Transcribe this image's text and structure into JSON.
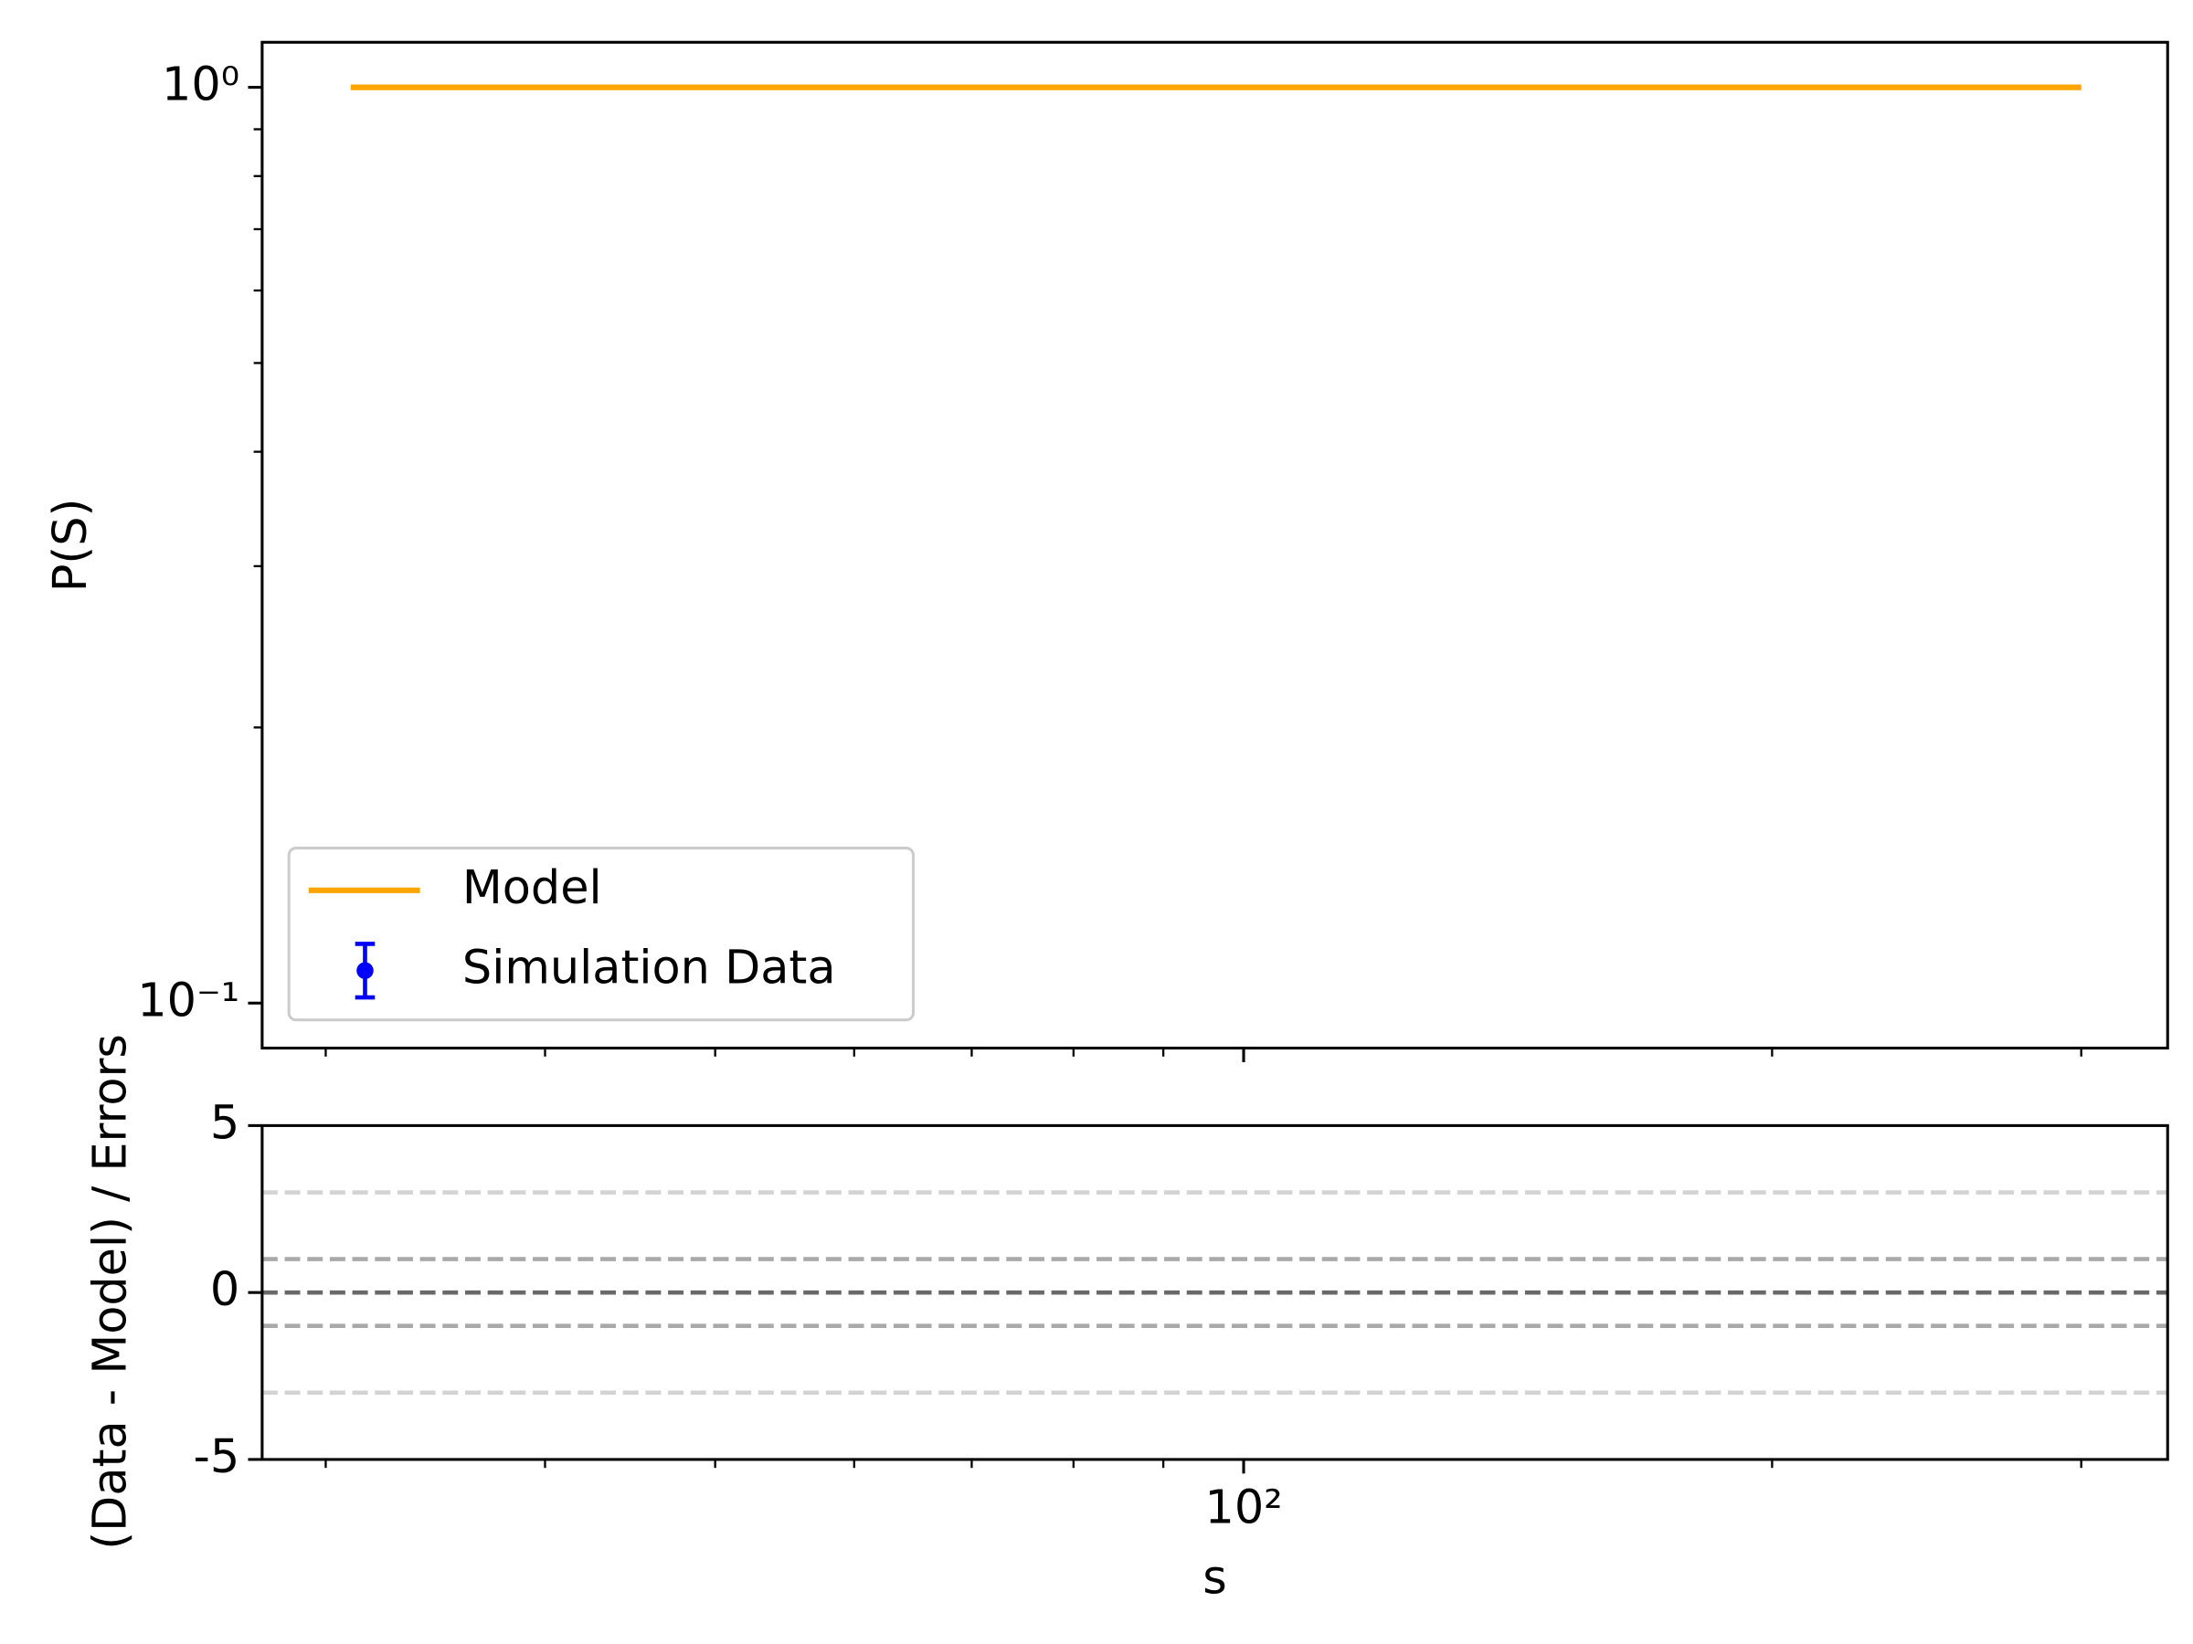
{
  "chart_data": [
    {
      "type": "line",
      "ylabel": "P(S)",
      "x": [
        31,
        300
      ],
      "series": [
        {
          "name": "Model",
          "color": "#ffa500",
          "values": [
            1,
            1
          ]
        },
        {
          "name": "Simulation Data",
          "color": "#0000ff",
          "x": [],
          "values": []
        }
      ],
      "xscale": "log",
      "yscale": "log",
      "xlim": [
        27.6,
        336
      ],
      "xticks": [
        100
      ],
      "xminorticks": [
        30,
        40,
        50,
        60,
        70,
        80,
        90,
        200,
        300
      ],
      "ylim": [
        0.0893,
        1.12
      ],
      "yticks": [
        {
          "value": 1,
          "label": "10⁰"
        },
        {
          "value": 0.1,
          "label": "10⁻¹"
        }
      ],
      "yminorticks": [
        0.2,
        0.3,
        0.4,
        0.5,
        0.6,
        0.7,
        0.8,
        0.9
      ],
      "legend": "lower left"
    },
    {
      "type": "hlines",
      "xlabel": "s",
      "ylabel": "(Data - Model) / Errors",
      "xscale": "log",
      "xlim": [
        27.6,
        336
      ],
      "xticks": [
        {
          "value": 100,
          "label": "10²"
        }
      ],
      "xminorticks": [
        30,
        40,
        50,
        60,
        70,
        80,
        90,
        200,
        300
      ],
      "ylim": [
        -5,
        5
      ],
      "yticks": [
        -5,
        0,
        5
      ],
      "hlines": [
        {
          "y": 3,
          "color": "#d3d3d3"
        },
        {
          "y": 1,
          "color": "#a9a9a9"
        },
        {
          "y": 0,
          "color": "#696969"
        },
        {
          "y": -1,
          "color": "#a9a9a9"
        },
        {
          "y": -3,
          "color": "#d3d3d3"
        }
      ]
    }
  ]
}
